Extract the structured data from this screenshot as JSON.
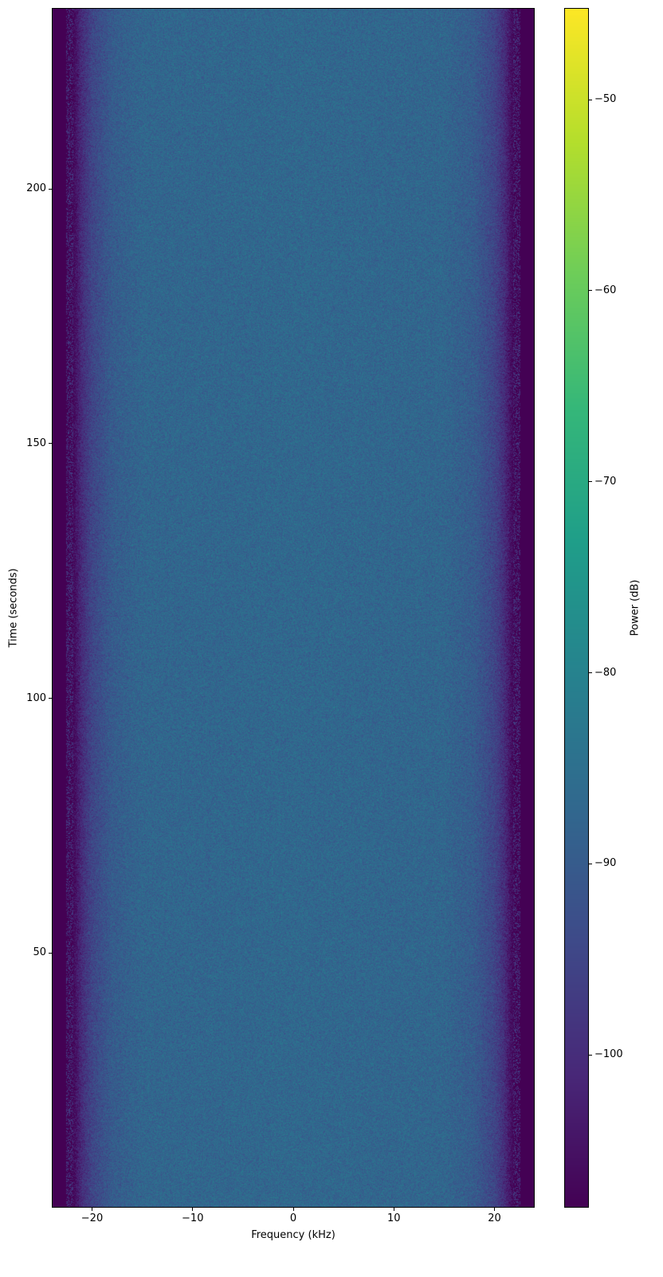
{
  "chart_data": {
    "type": "heatmap",
    "title": "",
    "xlabel": "Frequency (kHz)",
    "ylabel": "Time (seconds)",
    "xlim": [
      -24,
      24
    ],
    "ylim": [
      0,
      235.5
    ],
    "xticks": [
      {
        "value": -20,
        "label": "−20"
      },
      {
        "value": -10,
        "label": "−10"
      },
      {
        "value": 0,
        "label": "0"
      },
      {
        "value": 10,
        "label": "10"
      },
      {
        "value": 20,
        "label": "20"
      }
    ],
    "yticks": [
      {
        "value": 50,
        "label": "50"
      },
      {
        "value": 100,
        "label": "100"
      },
      {
        "value": 150,
        "label": "150"
      },
      {
        "value": 200,
        "label": "200"
      }
    ],
    "colormap": "viridis",
    "colorbar": {
      "label": "Power (dB)",
      "clim": [
        -108,
        -45.2
      ],
      "ticks": [
        {
          "value": -50,
          "label": "−50"
        },
        {
          "value": -60,
          "label": "−60"
        },
        {
          "value": -70,
          "label": "−70"
        },
        {
          "value": -80,
          "label": "−80"
        },
        {
          "value": -90,
          "label": "−90"
        },
        {
          "value": -100,
          "label": "−100"
        }
      ]
    },
    "mean_power_profile": {
      "frequency_khz": [
        -24,
        -22,
        -21,
        -20,
        -18,
        -15,
        0,
        15,
        18,
        20,
        21,
        22,
        24
      ],
      "power_db": [
        -108,
        -108,
        -100,
        -95,
        -90,
        -87.5,
        -87,
        -87.5,
        -90,
        -95,
        -100,
        -108,
        -108
      ]
    },
    "noise_spread_db": 4
  }
}
